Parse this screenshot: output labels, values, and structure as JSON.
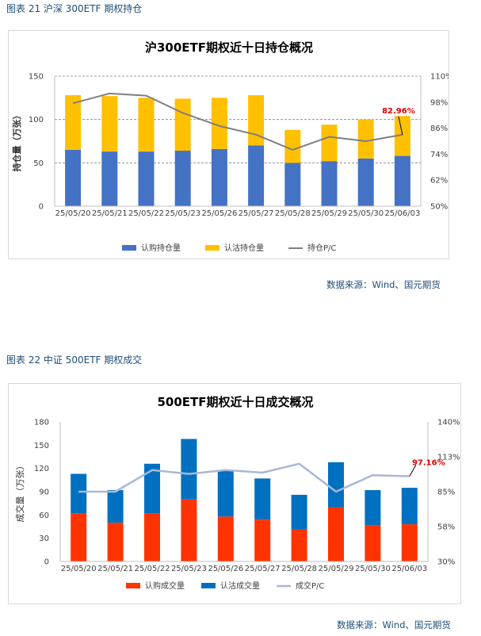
{
  "captions": [
    {
      "text": "图表 21  沪深 300ETF 期权持仓"
    },
    {
      "text": "图表 22  中证 500ETF 期权成交"
    }
  ],
  "sources": [
    {
      "text": "数据来源：Wind、国元期货"
    },
    {
      "text": "数据来源：Wind、国元期货"
    }
  ],
  "chart_data": [
    {
      "type": "bar",
      "stacked": true,
      "title": "沪300ETF期权近十日持仓概况",
      "ylabel": "持仓量（万张）",
      "categories": [
        "25/05/20",
        "25/05/21",
        "25/05/22",
        "25/05/23",
        "25/05/26",
        "25/05/27",
        "25/05/28",
        "25/05/29",
        "25/05/30",
        "25/06/03"
      ],
      "series": [
        {
          "name": "认购持仓量",
          "axis": "left",
          "color": "#4472c4",
          "values": [
            65,
            63,
            63,
            64,
            66,
            70,
            50,
            52,
            55,
            58
          ]
        },
        {
          "name": "认沽持仓量",
          "axis": "left",
          "color": "#ffc000",
          "values": [
            63,
            64,
            62,
            60,
            59,
            58,
            38,
            42,
            45,
            46
          ]
        },
        {
          "name": "持仓P/C",
          "axis": "right",
          "type": "line",
          "color": "#7f7f7f",
          "values": [
            97.5,
            102,
            101,
            93,
            87,
            83,
            76,
            82,
            80,
            82.96
          ]
        }
      ],
      "ylim": [
        0,
        150
      ],
      "yticks": [
        0,
        50,
        100,
        150
      ],
      "y2lim": [
        50,
        110
      ],
      "y2ticks": [
        "50%",
        "62%",
        "74%",
        "86%",
        "98%",
        "110%"
      ],
      "y2tick_values": [
        50,
        62,
        74,
        86,
        98,
        110
      ],
      "annotation": {
        "text": "82.96%",
        "color": "#e00000",
        "series_index": 2,
        "point_index": 9
      },
      "legend_position": "bottom",
      "grid": "horizontal dashed"
    },
    {
      "type": "bar",
      "stacked": true,
      "title": "500ETF期权近十日成交概况",
      "ylabel": "成交量（万张）",
      "categories": [
        "25/05/20",
        "25/05/21",
        "25/05/22",
        "25/05/23",
        "25/05/26",
        "25/05/27",
        "25/05/28",
        "25/05/29",
        "25/05/30",
        "25/06/03"
      ],
      "series": [
        {
          "name": "认购成交量",
          "axis": "left",
          "color": "#ff3300",
          "values": [
            62,
            50,
            62,
            80,
            58,
            54,
            41,
            70,
            47,
            48
          ]
        },
        {
          "name": "认沽成交量",
          "axis": "left",
          "color": "#0070c0",
          "values": [
            51,
            42,
            64,
            78,
            60,
            53,
            45,
            58,
            45,
            47
          ]
        },
        {
          "name": "成交P/C",
          "axis": "right",
          "type": "line",
          "color": "#a9b8d9",
          "values": [
            85,
            85,
            102,
            99,
            102,
            100,
            107,
            85,
            98,
            97.16
          ]
        }
      ],
      "ylim": [
        0,
        180
      ],
      "yticks": [
        0,
        30,
        60,
        90,
        120,
        150,
        180
      ],
      "y2lim": [
        30,
        140
      ],
      "y2ticks": [
        "30%",
        "58%",
        "85%",
        "113%",
        "140%"
      ],
      "y2tick_values": [
        30,
        57.5,
        85,
        112.5,
        140
      ],
      "annotation": {
        "text": "97.16%",
        "color": "#e00000",
        "series_index": 2,
        "point_index": 9
      },
      "legend_position": "bottom",
      "grid": "none"
    }
  ]
}
